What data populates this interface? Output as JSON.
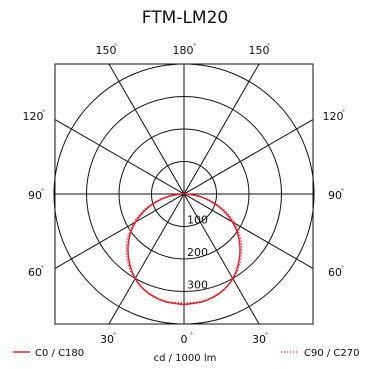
{
  "chart_data": {
    "type": "polar",
    "title": "FTM-LM20",
    "unit_label": "cd / 1000 lm",
    "radial_axis": {
      "ticks": [
        100,
        200,
        300
      ],
      "max": 400
    },
    "angle_labels": {
      "top_left_150": "150",
      "top_180": "180",
      "top_right_150": "150",
      "left_120": "120",
      "right_120": "120",
      "left_90": "90",
      "right_90": "90",
      "left_60": "60",
      "right_60": "60",
      "bottom_left_30": "30",
      "bottom_0": "0",
      "bottom_right_30": "30"
    },
    "degree_symbol": "°",
    "series": [
      {
        "name": "C0 / C180",
        "color": "#e8202a",
        "dash": "solid",
        "angles": [
          0,
          10,
          20,
          30,
          40,
          50,
          60,
          70,
          80,
          90,
          100,
          110,
          120,
          130,
          140,
          150,
          160,
          170,
          180
        ],
        "values": [
          340,
          336,
          324,
          300,
          264,
          222,
          172,
          114,
          56,
          8,
          0,
          0,
          0,
          0,
          0,
          0,
          0,
          0,
          0
        ]
      },
      {
        "name": "C90 / C270",
        "color": "#e8202a",
        "dash": "dotted",
        "angles": [
          0,
          10,
          20,
          30,
          40,
          50,
          60,
          70,
          80,
          90,
          100,
          110,
          120,
          130,
          140,
          150,
          160,
          170,
          180
        ],
        "values": [
          336,
          334,
          322,
          302,
          270,
          230,
          180,
          122,
          60,
          8,
          0,
          0,
          0,
          0,
          0,
          0,
          0,
          0,
          0
        ]
      }
    ],
    "grid": true,
    "legend": {
      "left": "C0 / C180",
      "right": "C90 / C270"
    }
  }
}
